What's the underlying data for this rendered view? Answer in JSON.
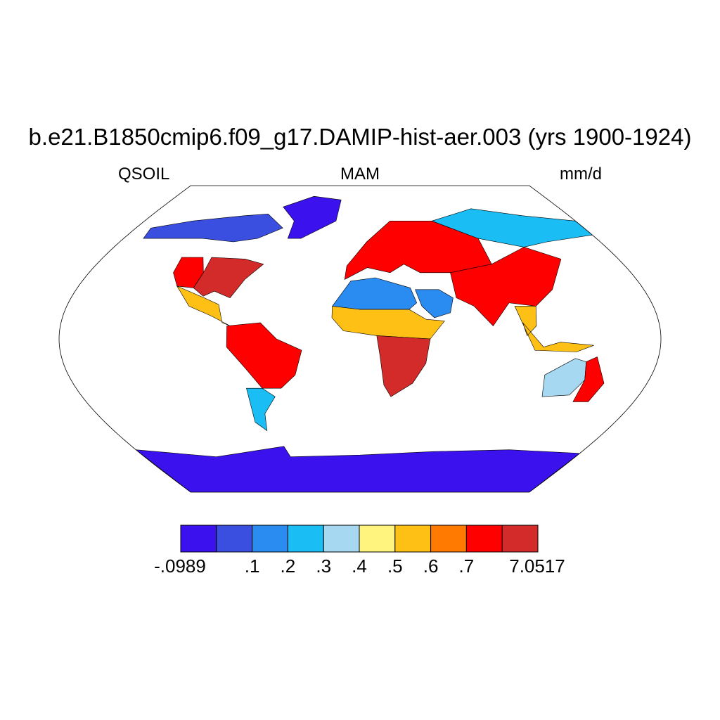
{
  "title": "b.e21.B1850cmip6.f09_g17.DAMIP-hist-aer.003 (yrs 1900-1924)",
  "subtitle": {
    "left": "QSOIL",
    "center": "MAM",
    "right": "mm/d"
  },
  "colorbar": {
    "colors": [
      "#3b11ee",
      "#3a4fe0",
      "#2a8bf1",
      "#1bbdf5",
      "#a6d8f2",
      "#fff47e",
      "#ffc015",
      "#ff7a00",
      "#ff0000",
      "#d32a2a"
    ],
    "labels": [
      "-.0989",
      ".1",
      ".2",
      ".3",
      ".4",
      ".5",
      ".6",
      ".7",
      "7.0517"
    ]
  },
  "map": {
    "projection": "robinson",
    "land_color_classes": {
      "antarctica": 0,
      "greenland": 0,
      "arctic_canada": 1,
      "eastern_us": 9,
      "western_us": 8,
      "central_america": 6,
      "amazon": 8,
      "patagonia": 3,
      "sahara": 2,
      "sahel": 6,
      "southern_africa": 9,
      "europe_russia": 8,
      "siberia": 3,
      "middle_east": 2,
      "india_china": 8,
      "southeast_asia": 6,
      "australia_interior": 4,
      "australia_east": 8
    }
  }
}
